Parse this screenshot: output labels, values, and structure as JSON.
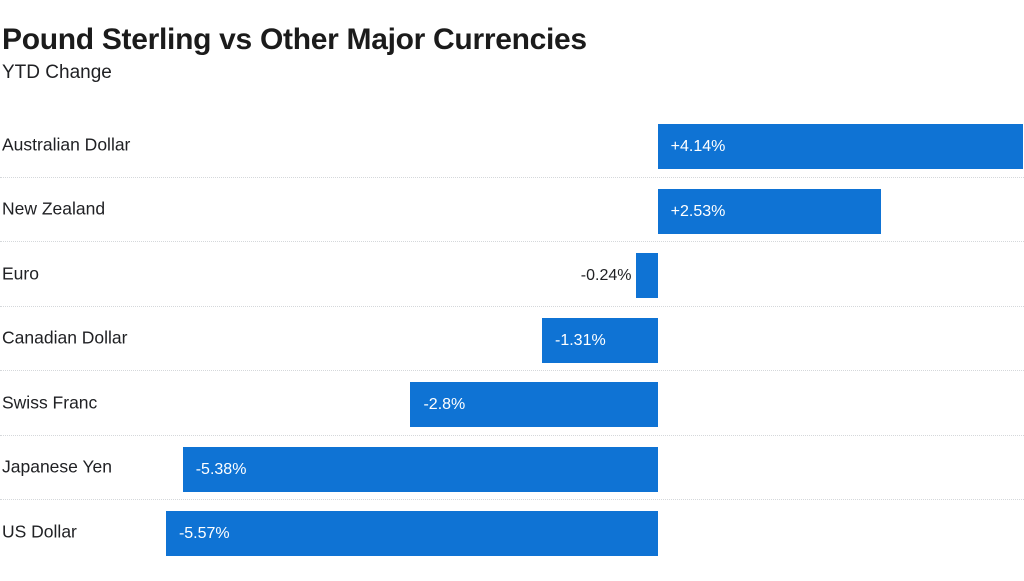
{
  "header": {
    "title": "Pound Sterling vs Other Major Currencies",
    "subtitle": "YTD Change"
  },
  "chart_data": {
    "type": "bar",
    "orientation": "horizontal",
    "title": "Pound Sterling vs Other Major Currencies",
    "subtitle": "YTD Change",
    "categories": [
      "Australian Dollar",
      "New Zealand",
      "Euro",
      "Canadian Dollar",
      "Swiss Franc",
      "Japanese Yen",
      "US Dollar"
    ],
    "values": [
      4.14,
      2.53,
      -0.24,
      -1.31,
      -2.8,
      -5.38,
      -5.57
    ],
    "value_labels": [
      "+4.14%",
      "+2.53%",
      "-0.24%",
      "-1.31%",
      "-2.8%",
      "-5.38%",
      "-5.57%"
    ],
    "xlim": [
      -7.45,
      4.15
    ],
    "grid": false,
    "legend": "none",
    "baseline": 0,
    "colors": {
      "bar": "#0f73d4",
      "label_inside": "#ffffff",
      "label_outside": "#202124",
      "category_text": "#202124",
      "title_text": "#1b1b1b",
      "separator": "#d5d8db",
      "background": "#ffffff"
    }
  }
}
